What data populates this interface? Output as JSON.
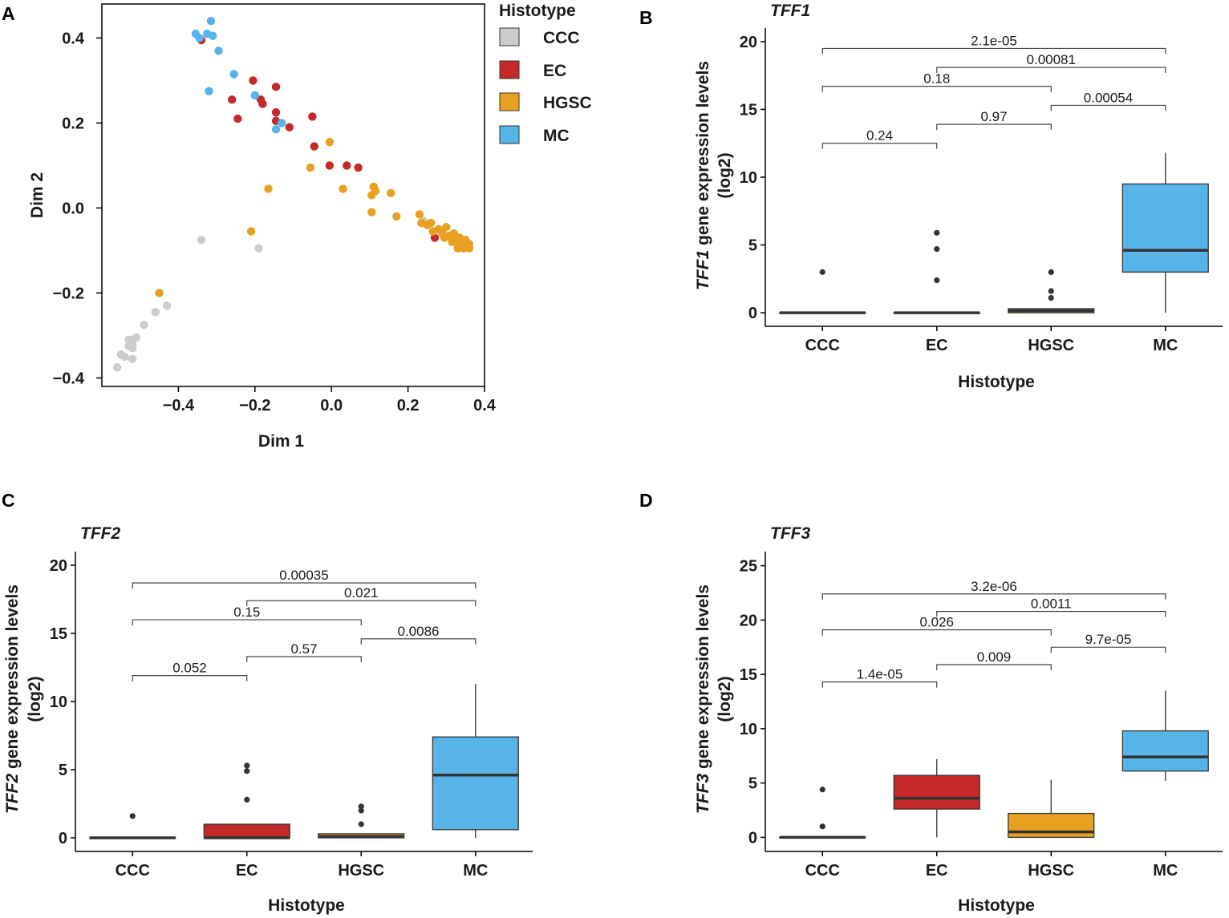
{
  "colors": {
    "CCC": "#cccccc",
    "EC": "#c62828",
    "HGSC": "#e8a020",
    "MC": "#56b4e9",
    "outlier": "#333333"
  },
  "chart_data": [
    {
      "panel": "A",
      "type": "scatter",
      "xlabel": "Dim 1",
      "ylabel": "Dim 2",
      "xlim": [
        -0.6,
        0.4
      ],
      "ylim": [
        -0.42,
        0.48
      ],
      "xticks": [
        -0.4,
        -0.2,
        0.0,
        0.2,
        0.4
      ],
      "xtick_labels": [
        "−0.4",
        "−0.2",
        "0.0",
        "0.2",
        "0.4"
      ],
      "yticks": [
        -0.4,
        -0.2,
        0.0,
        0.2,
        0.4
      ],
      "ytick_labels": [
        "−0.4",
        "−0.2",
        "0.0",
        "0.2",
        "0.4"
      ],
      "legend": {
        "title": "Histotype",
        "entries": [
          "CCC",
          "EC",
          "HGSC",
          "MC"
        ],
        "position": "right"
      },
      "series": [
        {
          "name": "CCC",
          "points": [
            [
              -0.34,
              -0.075
            ],
            [
              -0.19,
              -0.095
            ],
            [
              -0.43,
              -0.23
            ],
            [
              -0.46,
              -0.245
            ],
            [
              -0.49,
              -0.275
            ],
            [
              -0.52,
              -0.31
            ],
            [
              -0.53,
              -0.31
            ],
            [
              -0.51,
              -0.305
            ],
            [
              -0.52,
              -0.32
            ],
            [
              -0.53,
              -0.325
            ],
            [
              -0.52,
              -0.33
            ],
            [
              -0.55,
              -0.345
            ],
            [
              -0.54,
              -0.35
            ],
            [
              -0.52,
              -0.355
            ],
            [
              -0.56,
              -0.375
            ],
            [
              0.24,
              -0.03
            ]
          ]
        },
        {
          "name": "EC",
          "points": [
            [
              -0.34,
              0.395
            ],
            [
              -0.26,
              0.255
            ],
            [
              -0.245,
              0.21
            ],
            [
              -0.205,
              0.3
            ],
            [
              -0.185,
              0.255
            ],
            [
              -0.18,
              0.245
            ],
            [
              -0.145,
              0.285
            ],
            [
              -0.145,
              0.225
            ],
            [
              -0.145,
              0.205
            ],
            [
              -0.11,
              0.19
            ],
            [
              -0.05,
              0.215
            ],
            [
              -0.045,
              0.145
            ],
            [
              -0.005,
              0.1
            ],
            [
              0.04,
              0.1
            ],
            [
              0.07,
              0.095
            ],
            [
              0.27,
              -0.07
            ],
            [
              0.31,
              -0.065
            ],
            [
              0.32,
              -0.07
            ]
          ]
        },
        {
          "name": "HGSC",
          "points": [
            [
              -0.45,
              -0.2
            ],
            [
              -0.21,
              -0.055
            ],
            [
              -0.165,
              0.045
            ],
            [
              -0.055,
              0.095
            ],
            [
              -0.005,
              0.155
            ],
            [
              0.03,
              0.045
            ],
            [
              0.11,
              0.05
            ],
            [
              0.115,
              0.04
            ],
            [
              0.105,
              0.03
            ],
            [
              0.105,
              -0.01
            ],
            [
              0.155,
              0.035
            ],
            [
              0.17,
              -0.02
            ],
            [
              0.23,
              -0.015
            ],
            [
              0.235,
              -0.035
            ],
            [
              0.25,
              -0.04
            ],
            [
              0.26,
              -0.035
            ],
            [
              0.265,
              -0.055
            ],
            [
              0.28,
              -0.05
            ],
            [
              0.29,
              -0.06
            ],
            [
              0.295,
              -0.07
            ],
            [
              0.3,
              -0.045
            ],
            [
              0.31,
              -0.065
            ],
            [
              0.315,
              -0.08
            ],
            [
              0.32,
              -0.06
            ],
            [
              0.325,
              -0.075
            ],
            [
              0.33,
              -0.085
            ],
            [
              0.335,
              -0.07
            ],
            [
              0.34,
              -0.09
            ],
            [
              0.345,
              -0.08
            ],
            [
              0.35,
              -0.075
            ],
            [
              0.355,
              -0.09
            ],
            [
              0.36,
              -0.085
            ],
            [
              0.33,
              -0.095
            ],
            [
              0.345,
              -0.095
            ],
            [
              0.36,
              -0.095
            ]
          ]
        },
        {
          "name": "MC",
          "points": [
            [
              -0.355,
              0.41
            ],
            [
              -0.345,
              0.4
            ],
            [
              -0.325,
              0.41
            ],
            [
              -0.31,
              0.405
            ],
            [
              -0.315,
              0.44
            ],
            [
              -0.295,
              0.37
            ],
            [
              -0.32,
              0.275
            ],
            [
              -0.255,
              0.315
            ],
            [
              -0.2,
              0.265
            ],
            [
              -0.13,
              0.2
            ],
            [
              -0.145,
              0.185
            ]
          ]
        }
      ]
    },
    {
      "panel": "B",
      "type": "box",
      "gene": "TFF1",
      "title": "TFF1",
      "xlabel": "Histotype",
      "ylabel": "gene expression levels",
      "ylabel_gene": "TFF1",
      "ylabel_unit": "(log2)",
      "categories": [
        "CCC",
        "EC",
        "HGSC",
        "MC"
      ],
      "ylim": [
        -1,
        21
      ],
      "yticks": [
        0,
        5,
        10,
        15,
        20
      ],
      "ytick_labels": [
        "0",
        "5",
        "10",
        "15",
        "20"
      ],
      "boxes": [
        {
          "q1": 0,
          "median": 0,
          "q3": 0,
          "lower": 0,
          "upper": 0,
          "outliers": [
            3.0
          ]
        },
        {
          "q1": 0,
          "median": 0,
          "q3": 0,
          "lower": 0,
          "upper": 0,
          "outliers": [
            2.4,
            4.7,
            5.9
          ]
        },
        {
          "q1": 0,
          "median": 0.15,
          "q3": 0.3,
          "lower": 0,
          "upper": 0.3,
          "outliers": [
            1.1,
            1.6,
            3.0
          ]
        },
        {
          "q1": 3.0,
          "median": 4.6,
          "q3": 9.5,
          "lower": 0,
          "upper": 11.8,
          "outliers": []
        }
      ],
      "comparisons": [
        {
          "from": 0,
          "to": 1,
          "y": 12.5,
          "label": "0.24"
        },
        {
          "from": 1,
          "to": 2,
          "y": 13.9,
          "label": "0.97"
        },
        {
          "from": 2,
          "to": 3,
          "y": 15.3,
          "label": "0.00054"
        },
        {
          "from": 0,
          "to": 2,
          "y": 16.7,
          "label": "0.18"
        },
        {
          "from": 1,
          "to": 3,
          "y": 18.1,
          "label": "0.00081"
        },
        {
          "from": 0,
          "to": 3,
          "y": 19.5,
          "label": "2.1e-05"
        }
      ]
    },
    {
      "panel": "C",
      "type": "box",
      "gene": "TFF2",
      "title": "TFF2",
      "xlabel": "Histotype",
      "ylabel": "gene expression levels",
      "ylabel_gene": "TFF2",
      "ylabel_unit": "(log2)",
      "categories": [
        "CCC",
        "EC",
        "HGSC",
        "MC"
      ],
      "ylim": [
        -1,
        21
      ],
      "yticks": [
        0,
        5,
        10,
        15,
        20
      ],
      "ytick_labels": [
        "0",
        "5",
        "10",
        "15",
        "20"
      ],
      "boxes": [
        {
          "q1": 0,
          "median": 0,
          "q3": 0,
          "lower": 0,
          "upper": 0,
          "outliers": [
            1.6
          ]
        },
        {
          "q1": 0,
          "median": 0,
          "q3": 1.0,
          "lower": 0,
          "upper": 1.0,
          "outliers": [
            2.8,
            4.9,
            5.3
          ]
        },
        {
          "q1": 0,
          "median": 0.1,
          "q3": 0.3,
          "lower": 0,
          "upper": 0.3,
          "outliers": [
            1.0,
            2.0,
            2.3
          ]
        },
        {
          "q1": 0.6,
          "median": 4.6,
          "q3": 7.4,
          "lower": 0,
          "upper": 11.3,
          "outliers": []
        }
      ],
      "comparisons": [
        {
          "from": 0,
          "to": 1,
          "y": 11.9,
          "label": "0.052"
        },
        {
          "from": 1,
          "to": 2,
          "y": 13.3,
          "label": "0.57"
        },
        {
          "from": 2,
          "to": 3,
          "y": 14.6,
          "label": "0.0086"
        },
        {
          "from": 0,
          "to": 2,
          "y": 16.0,
          "label": "0.15"
        },
        {
          "from": 1,
          "to": 3,
          "y": 17.4,
          "label": "0.021"
        },
        {
          "from": 0,
          "to": 3,
          "y": 18.7,
          "label": "0.00035"
        }
      ]
    },
    {
      "panel": "D",
      "type": "box",
      "gene": "TFF3",
      "title": "TFF3",
      "xlabel": "Histotype",
      "ylabel": "gene expression levels",
      "ylabel_gene": "TFF3",
      "ylabel_unit": "(log2)",
      "categories": [
        "CCC",
        "EC",
        "HGSC",
        "MC"
      ],
      "ylim": [
        -1.3,
        26.3
      ],
      "yticks": [
        0,
        5,
        10,
        15,
        20,
        25
      ],
      "ytick_labels": [
        "0",
        "5",
        "10",
        "15",
        "20",
        "25"
      ],
      "boxes": [
        {
          "q1": 0,
          "median": 0,
          "q3": 0,
          "lower": 0,
          "upper": 0,
          "outliers": [
            1.0,
            4.4
          ]
        },
        {
          "q1": 2.6,
          "median": 3.6,
          "q3": 5.7,
          "lower": 0,
          "upper": 7.2,
          "outliers": []
        },
        {
          "q1": 0,
          "median": 0.5,
          "q3": 2.2,
          "lower": 0,
          "upper": 5.3,
          "outliers": []
        },
        {
          "q1": 6.1,
          "median": 7.4,
          "q3": 9.8,
          "lower": 5.2,
          "upper": 13.5,
          "outliers": []
        }
      ],
      "comparisons": [
        {
          "from": 0,
          "to": 1,
          "y": 14.3,
          "label": "1.4e-05"
        },
        {
          "from": 1,
          "to": 2,
          "y": 15.9,
          "label": "0.009"
        },
        {
          "from": 2,
          "to": 3,
          "y": 17.5,
          "label": "9.7e-05"
        },
        {
          "from": 0,
          "to": 2,
          "y": 19.1,
          "label": "0.026"
        },
        {
          "from": 1,
          "to": 3,
          "y": 20.8,
          "label": "0.0011"
        },
        {
          "from": 0,
          "to": 3,
          "y": 22.4,
          "label": "3.2e-06"
        }
      ]
    }
  ]
}
